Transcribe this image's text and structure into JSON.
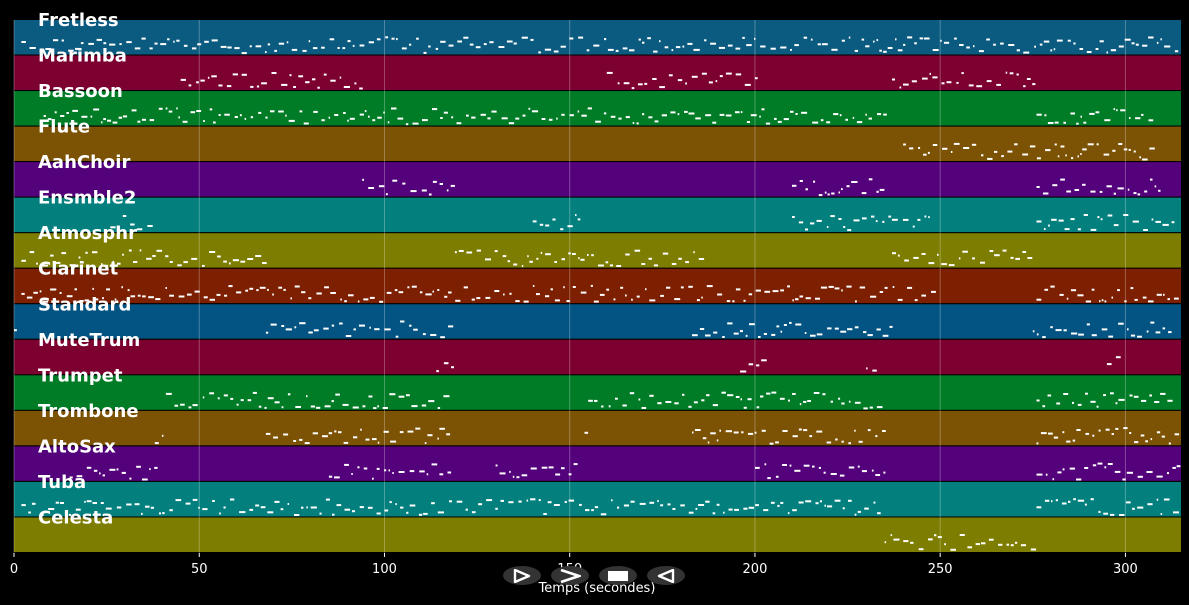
{
  "chart_data": {
    "type": "piano-roll",
    "xlabel": "Temps (secondes)",
    "xlim": [
      0,
      315
    ],
    "xticks": [
      0,
      50,
      100,
      150,
      200,
      250,
      300
    ],
    "grid": true,
    "tracks": [
      {
        "name": "Fretless",
        "color": "#0b5a80",
        "active": [
          [
            2,
            240
          ],
          [
            240,
            251
          ],
          [
            251,
            314
          ]
        ]
      },
      {
        "name": "Marimba",
        "color": "#7d0130",
        "active": [
          [
            45,
            95
          ],
          [
            160,
            200
          ],
          [
            237,
            275
          ]
        ]
      },
      {
        "name": "Bassoon",
        "color": "#017c26",
        "active": [
          [
            8,
            118
          ],
          [
            118,
            235
          ],
          [
            276,
            308
          ]
        ]
      },
      {
        "name": "Flute",
        "color": "#7c5205",
        "active": [
          [
            240,
            307
          ]
        ]
      },
      {
        "name": "AahChoir",
        "color": "#54017c",
        "active": [
          [
            94,
            118
          ],
          [
            210,
            235
          ],
          [
            276,
            310
          ]
        ]
      },
      {
        "name": "Ensmble2",
        "color": "#03807e",
        "active": [
          [
            26,
            38
          ],
          [
            140,
            153
          ],
          [
            210,
            235
          ],
          [
            236,
            248
          ],
          [
            276,
            314
          ]
        ]
      },
      {
        "name": "Atmosphr",
        "color": "#7d7d01",
        "active": [
          [
            2,
            68
          ],
          [
            119,
            185
          ],
          [
            237,
            275
          ]
        ]
      },
      {
        "name": "Clarinet",
        "color": "#7d2002",
        "active": [
          [
            2,
            180
          ],
          [
            180,
            248
          ],
          [
            276,
            314
          ]
        ]
      },
      {
        "name": "Standard",
        "color": "#035483",
        "active": [
          [
            0,
            1
          ],
          [
            68,
            119
          ],
          [
            183,
            237
          ],
          [
            275,
            313
          ]
        ]
      },
      {
        "name": "MuteTrum",
        "color": "#7d0130",
        "active": [
          [
            114,
            118
          ],
          [
            196,
            202
          ],
          [
            230,
            233
          ],
          [
            295,
            298
          ]
        ]
      },
      {
        "name": "Trumpet",
        "color": "#017c26",
        "active": [
          [
            41,
            118
          ],
          [
            155,
            235
          ],
          [
            276,
            314
          ]
        ]
      },
      {
        "name": "Trombone",
        "color": "#7c5205",
        "active": [
          [
            38,
            40
          ],
          [
            68,
            118
          ],
          [
            154,
            155
          ],
          [
            183,
            235
          ],
          [
            276,
            314
          ]
        ]
      },
      {
        "name": "AltoSax",
        "color": "#54017c",
        "active": [
          [
            15,
            38
          ],
          [
            85,
            118
          ],
          [
            130,
            152
          ],
          [
            200,
            235
          ],
          [
            276,
            314
          ]
        ]
      },
      {
        "name": "Tuba",
        "color": "#03807e",
        "active": [
          [
            2,
            235
          ],
          [
            276,
            314
          ]
        ]
      },
      {
        "name": "Celesta",
        "color": "#7d7d01",
        "active": [
          [
            235,
            275
          ]
        ]
      }
    ]
  },
  "controls": {
    "play_label": "Play",
    "next_label": "Next",
    "stop_label": "Stop",
    "prev_label": "Previous"
  }
}
